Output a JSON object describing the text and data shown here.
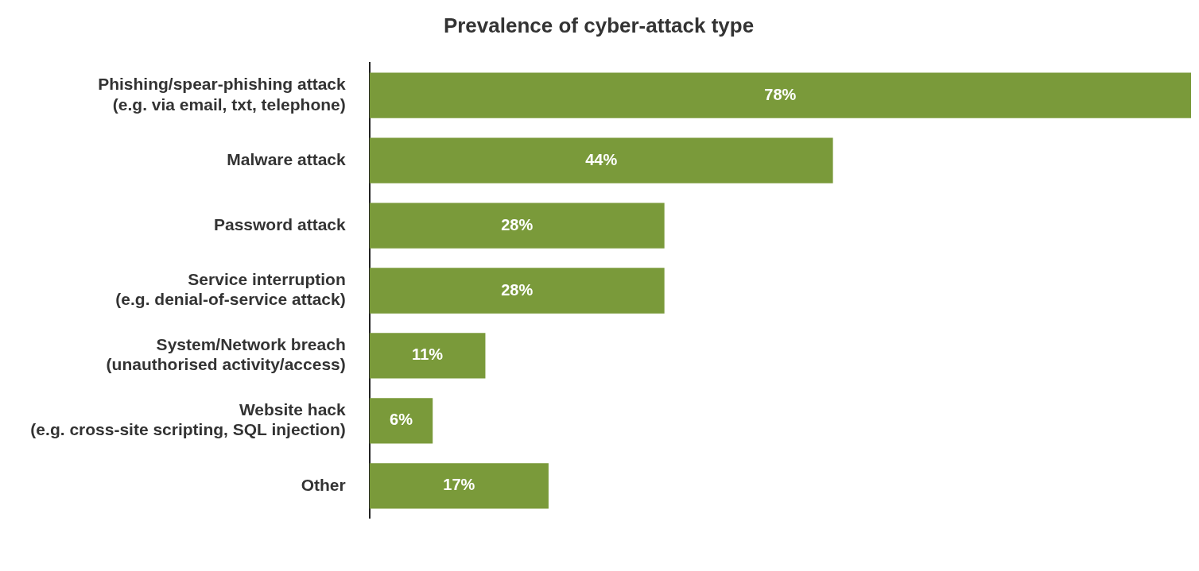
{
  "chart_data": {
    "type": "bar",
    "orientation": "horizontal",
    "title": "Prevalence of cyber-attack type",
    "relative": false,
    "categories": [
      "Phishing/spear-phishing attack\n(e.g. via email, txt, telephone)",
      "Malware attack",
      "Password attack",
      "Service interruption\n(e.g. denial-of-service attack)",
      "System/Network breach\n(unauthorised activity/access)",
      "Website hack\n(e.g. cross-site scripting, SQL injection)",
      "Other"
    ],
    "values": [
      78,
      44,
      28,
      28,
      11,
      6,
      17
    ],
    "value_labels": [
      "78%",
      "44%",
      "28%",
      "28%",
      "11%",
      "6%",
      "17%"
    ],
    "color": "#7a9a3a",
    "grid": false,
    "legend": false
  }
}
